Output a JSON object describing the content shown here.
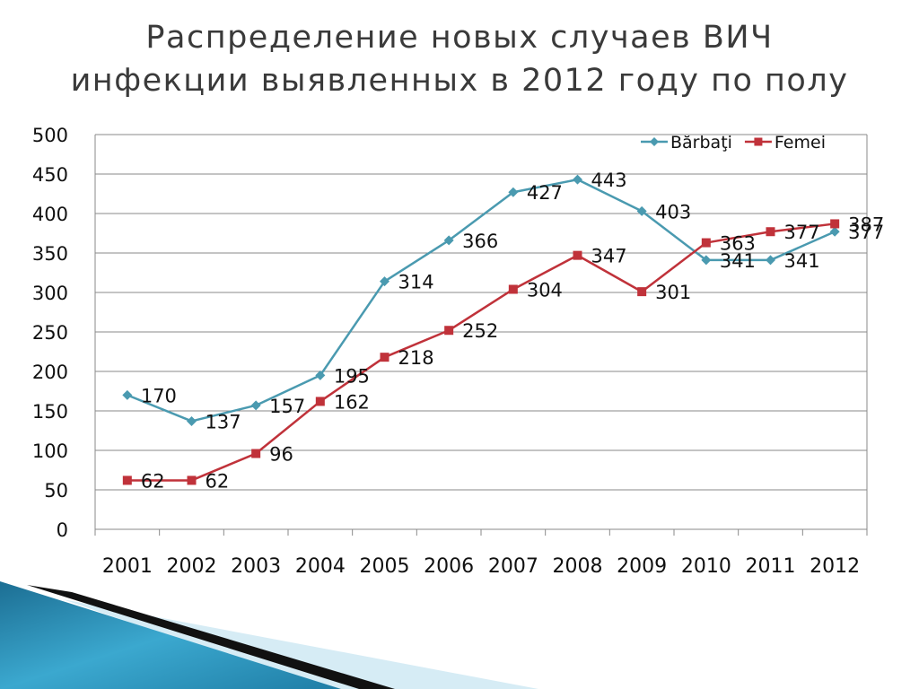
{
  "slide": {
    "title_line1": "Распределение новых случаев ВИЧ",
    "title_line2": "инфекции выявленных в 2012 году по полу"
  },
  "chart_data": {
    "type": "line",
    "title": "Распределение новых случаев ВИЧ инфекции выявленных в 2012 году по полу",
    "xlabel": "",
    "ylabel": "",
    "categories": [
      "2001",
      "2002",
      "2003",
      "2004",
      "2005",
      "2006",
      "2007",
      "2008",
      "2009",
      "2010",
      "2011",
      "2012"
    ],
    "series": [
      {
        "name": "Bărbaţi",
        "color": "#4a9ab0",
        "marker": "diamond",
        "values": [
          170,
          137,
          157,
          195,
          314,
          366,
          427,
          443,
          403,
          341,
          341,
          377
        ]
      },
      {
        "name": "Femei",
        "color": "#c0323a",
        "marker": "square",
        "values": [
          62,
          62,
          96,
          162,
          218,
          252,
          304,
          347,
          301,
          363,
          377,
          387
        ]
      }
    ],
    "ylim": [
      0,
      500
    ],
    "yticks": [
      0,
      50,
      100,
      150,
      200,
      250,
      300,
      350,
      400,
      450,
      500
    ],
    "grid": true,
    "legend": "top-right",
    "data_labels": true
  },
  "colors": {
    "gridline": "#8a8a8a",
    "axis": "#8a8a8a",
    "text": "#111111",
    "decor_dark": "#111111",
    "decor_teal": "#2d8fb4",
    "decor_light": "#cfe8f3"
  }
}
